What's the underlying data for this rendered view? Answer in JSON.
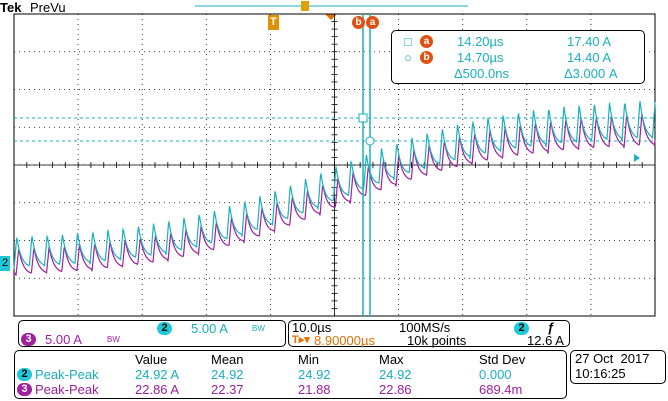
{
  "header": {
    "brand": "Tek",
    "mode": "PreVu"
  },
  "markers": {
    "trigger": "T",
    "cursor_b": "b",
    "cursor_a": "a",
    "channel": "2"
  },
  "cursors": {
    "a": {
      "label": "a",
      "time": "14.20µs",
      "value": "17.40 A"
    },
    "b": {
      "label": "b",
      "time": "14.70µs",
      "value": "14.40 A"
    },
    "delta": {
      "time": "Δ500.0ns",
      "value": "Δ3.000 A"
    }
  },
  "channels": [
    {
      "number": "2",
      "scale": "5.00 A",
      "bw": "BW"
    },
    {
      "number": "3",
      "scale": "5.00 A",
      "bw": "BW"
    }
  ],
  "timebase": {
    "scale": "10.0µs",
    "sample_rate": "100MS/s",
    "delay": "8.90000µs",
    "record_length": "10k points"
  },
  "trigger": {
    "source": "2",
    "slope": "ƒ",
    "level": "12.6 A"
  },
  "measurements": {
    "columns": [
      "Value",
      "Mean",
      "Min",
      "Max",
      "Std Dev"
    ],
    "rows": [
      {
        "channel": "2",
        "type": "Peak-Peak",
        "cells": [
          "24.92 A",
          "24.92",
          "24.92",
          "24.92",
          "0.000"
        ]
      },
      {
        "channel": "3",
        "type": "Peak-Peak",
        "cells": [
          "22.86 A",
          "22.37",
          "21.88",
          "22.86",
          "689.4m"
        ]
      }
    ]
  },
  "datetime": {
    "date": "27 Oct  2017",
    "time": "10:16:25"
  }
}
